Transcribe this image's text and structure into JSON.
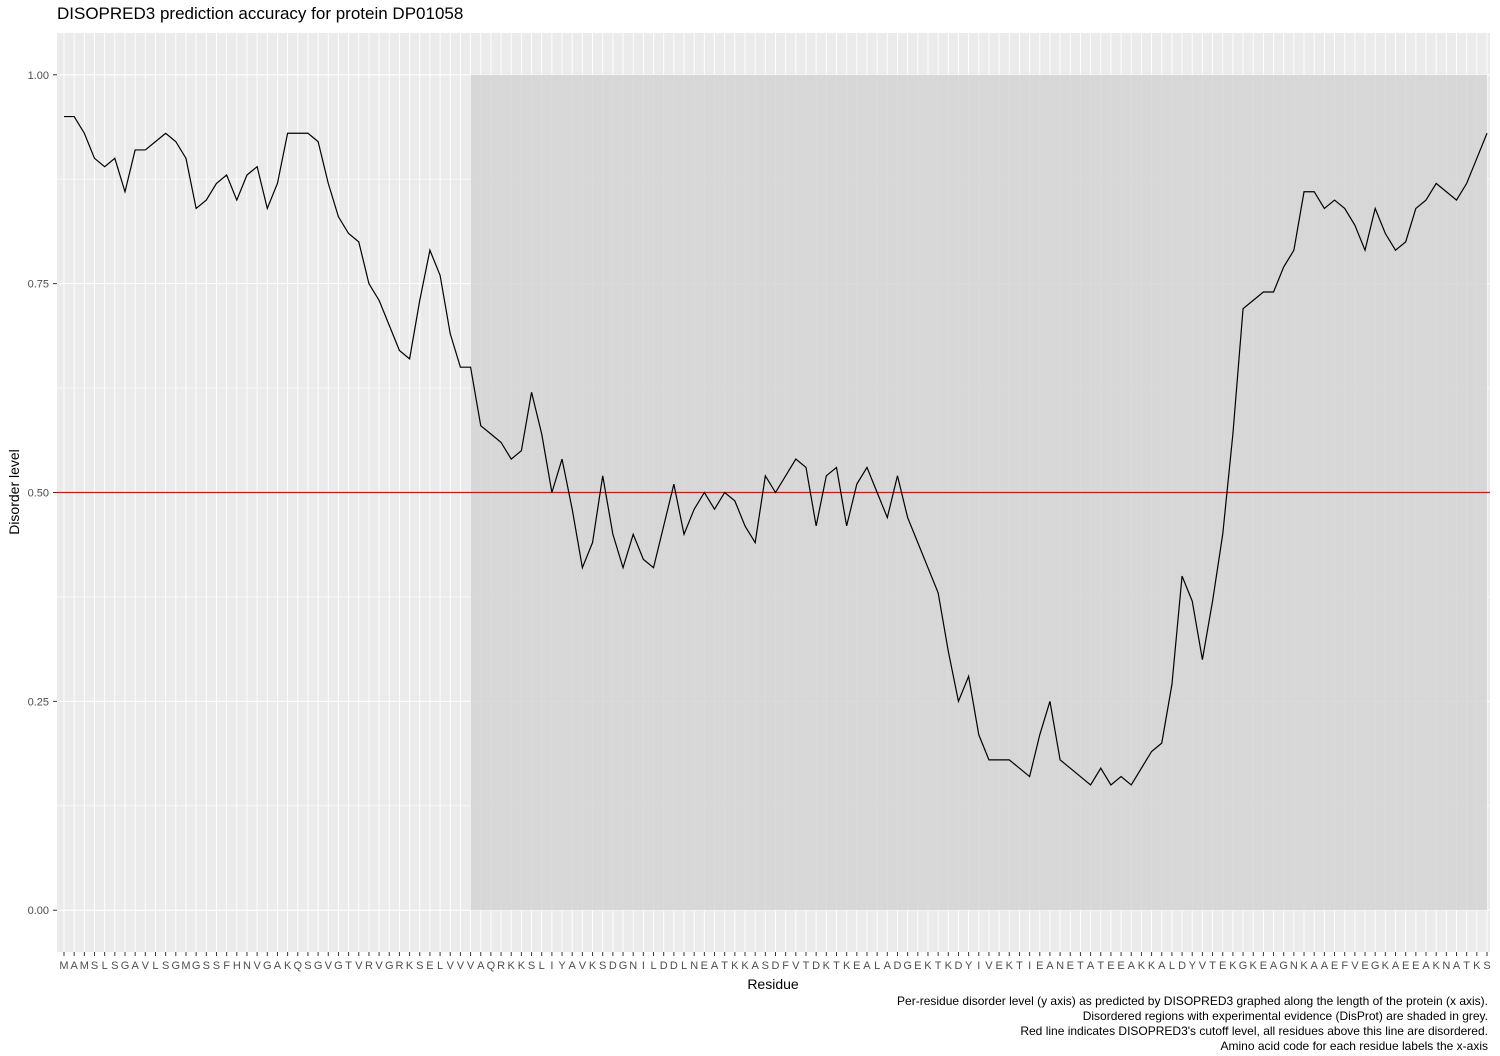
{
  "chart_data": {
    "type": "line",
    "title": "DISOPRED3 prediction accuracy for protein DP01058",
    "xlabel": "Residue",
    "ylabel": "Disorder level",
    "ylim": [
      -0.05,
      1.05
    ],
    "yticks": [
      "0.00",
      "0.25",
      "0.50",
      "0.75",
      "1.00"
    ],
    "ytick_values": [
      0,
      0.25,
      0.5,
      0.75,
      1.0
    ],
    "grid": true,
    "residues": [
      "M",
      "A",
      "M",
      "S",
      "L",
      "S",
      "G",
      "A",
      "V",
      "L",
      "S",
      "G",
      "M",
      "G",
      "S",
      "S",
      "F",
      "H",
      "N",
      "V",
      "G",
      "A",
      "K",
      "Q",
      "S",
      "G",
      "V",
      "G",
      "T",
      "V",
      "R",
      "V",
      "G",
      "R",
      "K",
      "S",
      "E",
      "L",
      "V",
      "V",
      "V",
      "A",
      "Q",
      "R",
      "K",
      "K",
      "S",
      "L",
      "I",
      "Y",
      "A",
      "V",
      "K",
      "S",
      "D",
      "G",
      "N",
      "I",
      "L",
      "D",
      "D",
      "L",
      "N",
      "E",
      "A",
      "T",
      "K",
      "K",
      "A",
      "S",
      "D",
      "F",
      "V",
      "T",
      "D",
      "K",
      "T",
      "K",
      "E",
      "A",
      "L",
      "A",
      "D",
      "G",
      "E",
      "K",
      "T",
      "K",
      "D",
      "Y",
      "I",
      "V",
      "E",
      "K",
      "T",
      "I",
      "E",
      "A",
      "N",
      "E",
      "T",
      "A",
      "T",
      "E",
      "E",
      "A",
      "K",
      "K",
      "A",
      "L",
      "D",
      "Y",
      "V",
      "T",
      "E",
      "K",
      "G",
      "K",
      "E",
      "A",
      "G",
      "N",
      "K",
      "A",
      "A",
      "E",
      "F",
      "V",
      "E",
      "G",
      "K",
      "A",
      "E",
      "E",
      "A",
      "K",
      "N",
      "A",
      "T",
      "K",
      "S"
    ],
    "series": [
      {
        "values": [
          0.95,
          0.95,
          0.93,
          0.9,
          0.89,
          0.9,
          0.86,
          0.91,
          0.91,
          0.92,
          0.93,
          0.92,
          0.9,
          0.84,
          0.85,
          0.87,
          0.88,
          0.85,
          0.88,
          0.89,
          0.84,
          0.87,
          0.93,
          0.93,
          0.93,
          0.92,
          0.87,
          0.83,
          0.81,
          0.8,
          0.75,
          0.73,
          0.7,
          0.67,
          0.66,
          0.73,
          0.79,
          0.76,
          0.69,
          0.65,
          0.65,
          0.58,
          0.57,
          0.56,
          0.54,
          0.55,
          0.62,
          0.57,
          0.5,
          0.54,
          0.48,
          0.41,
          0.44,
          0.52,
          0.45,
          0.41,
          0.45,
          0.42,
          0.41,
          0.46,
          0.51,
          0.45,
          0.48,
          0.5,
          0.48,
          0.5,
          0.49,
          0.46,
          0.44,
          0.52,
          0.5,
          0.52,
          0.54,
          0.53,
          0.46,
          0.52,
          0.53,
          0.46,
          0.51,
          0.53,
          0.5,
          0.47,
          0.52,
          0.47,
          0.44,
          0.41,
          0.38,
          0.31,
          0.25,
          0.28,
          0.21,
          0.18,
          0.18,
          0.18,
          0.17,
          0.16,
          0.21,
          0.25,
          0.18,
          0.17,
          0.16,
          0.15,
          0.17,
          0.15,
          0.16,
          0.15,
          0.17,
          0.19,
          0.2,
          0.27,
          0.4,
          0.37,
          0.3,
          0.37,
          0.45,
          0.57,
          0.72,
          0.73,
          0.74,
          0.74,
          0.77,
          0.79,
          0.86,
          0.86,
          0.84,
          0.85,
          0.84,
          0.82,
          0.79,
          0.84,
          0.81,
          0.79,
          0.8,
          0.84,
          0.85,
          0.87,
          0.86,
          0.85,
          0.87,
          0.9,
          0.93
        ],
        "color": "#000000"
      }
    ],
    "disordered_region": {
      "start_residue": 41,
      "end_residue": 141,
      "color": "#d4d4d4"
    },
    "cutoff": {
      "value": 0.5,
      "color": "#ff0000"
    },
    "panel_background": "#ebebeb",
    "grid_color": "#ffffff",
    "captions": [
      "Per-residue disorder level (y axis) as predicted by DISOPRED3 graphed along the length of the protein (x axis).",
      "Disordered regions with experimental evidence (DisProt) are shaded in grey.",
      "Red line indicates DISOPRED3's cutoff level, all residues above this line are disordered.",
      "Amino acid code for each residue labels the x-axis"
    ]
  }
}
